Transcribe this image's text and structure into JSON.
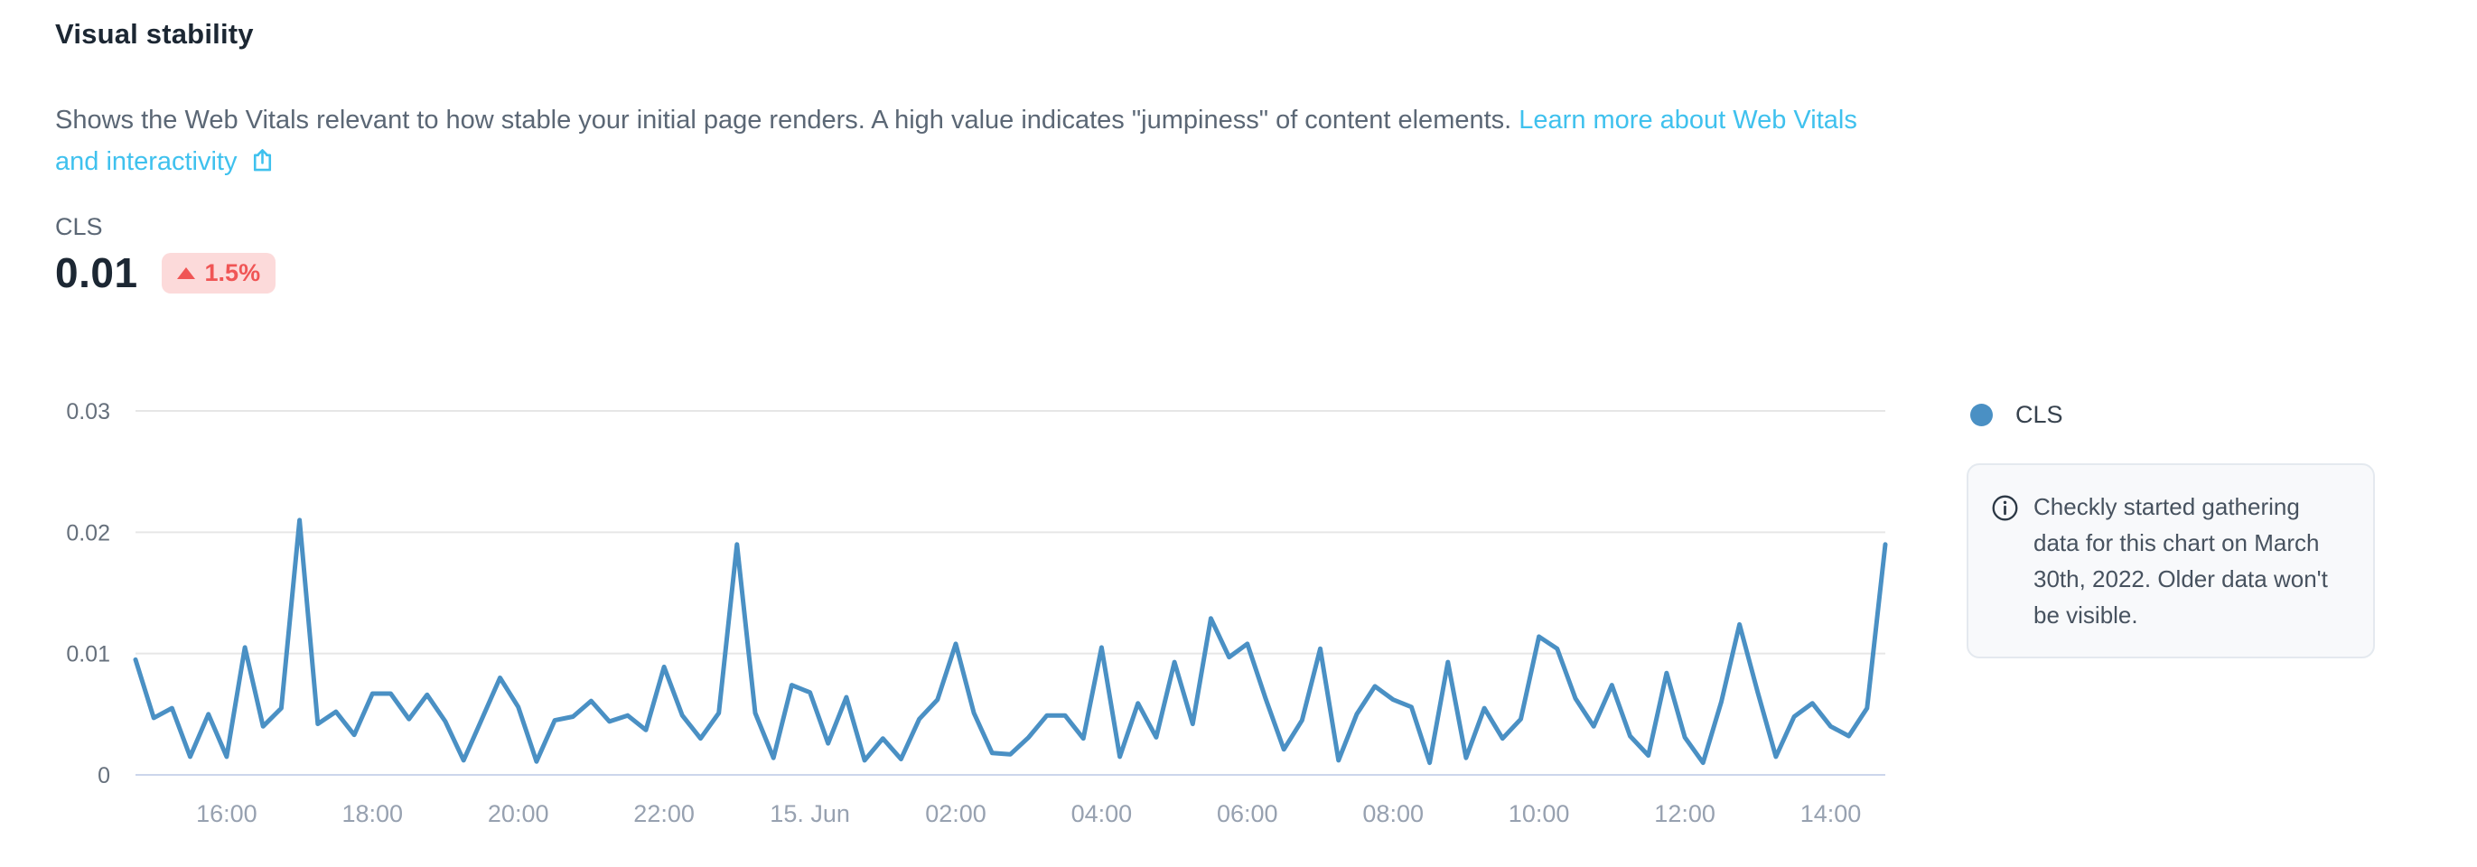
{
  "header": {
    "title": "Visual stability",
    "description": "Shows the Web Vitals relevant to how stable your initial page renders. A high value indicates \"jumpiness\" of content elements.",
    "link_text": "Learn more about Web Vitals and interactivity",
    "link_color": "#3fc1ee"
  },
  "metric": {
    "label": "CLS",
    "value": "0.01",
    "delta": "1.5%",
    "delta_direction": "up",
    "delta_color": "#f05555",
    "delta_bg": "#fcdada"
  },
  "legend": {
    "items": [
      {
        "label": "CLS",
        "color": "#4a90c4"
      }
    ]
  },
  "info_box": {
    "text": "Checkly started gathering data for this chart on March 30th, 2022. Older data won't be visible."
  },
  "chart_data": {
    "type": "line",
    "title": "",
    "xlabel": "",
    "ylabel": "",
    "ylim": [
      0,
      0.03
    ],
    "grid": "horizontal",
    "legend_position": "right",
    "x_start": "Jun 14, 14:45",
    "x_interval_minutes": 15,
    "x_ticks": [
      {
        "label": "16:00",
        "index": 5
      },
      {
        "label": "18:00",
        "index": 13
      },
      {
        "label": "20:00",
        "index": 21
      },
      {
        "label": "22:00",
        "index": 29
      },
      {
        "label": "15. Jun",
        "index": 37
      },
      {
        "label": "02:00",
        "index": 45
      },
      {
        "label": "04:00",
        "index": 53
      },
      {
        "label": "06:00",
        "index": 61
      },
      {
        "label": "08:00",
        "index": 69
      },
      {
        "label": "10:00",
        "index": 77
      },
      {
        "label": "12:00",
        "index": 85
      },
      {
        "label": "14:00",
        "index": 93
      }
    ],
    "y_ticks": [
      {
        "label": "0",
        "value": 0
      },
      {
        "label": "0.01",
        "value": 0.01
      },
      {
        "label": "0.02",
        "value": 0.02
      },
      {
        "label": "0.03",
        "value": 0.03
      }
    ],
    "series": [
      {
        "name": "CLS",
        "color": "#4a90c4",
        "values": [
          0.0095,
          0.0047,
          0.0055,
          0.0015,
          0.005,
          0.0015,
          0.0105,
          0.004,
          0.0055,
          0.021,
          0.0042,
          0.0052,
          0.0033,
          0.0067,
          0.0067,
          0.0046,
          0.0066,
          0.0044,
          0.0012,
          0.0046,
          0.008,
          0.0056,
          0.0011,
          0.0045,
          0.0048,
          0.0061,
          0.0044,
          0.0049,
          0.0037,
          0.0089,
          0.0049,
          0.003,
          0.0051,
          0.019,
          0.0051,
          0.0014,
          0.0074,
          0.0068,
          0.0026,
          0.0064,
          0.0012,
          0.003,
          0.0013,
          0.0046,
          0.0062,
          0.0108,
          0.0051,
          0.0018,
          0.0017,
          0.0031,
          0.0049,
          0.0049,
          0.003,
          0.0105,
          0.0015,
          0.0059,
          0.0031,
          0.0093,
          0.0042,
          0.0129,
          0.0097,
          0.0108,
          0.0063,
          0.0021,
          0.0045,
          0.0104,
          0.0012,
          0.005,
          0.0073,
          0.0062,
          0.0056,
          0.001,
          0.0093,
          0.0014,
          0.0055,
          0.003,
          0.0046,
          0.0114,
          0.0104,
          0.0063,
          0.004,
          0.0074,
          0.0032,
          0.0016,
          0.0084,
          0.0031,
          0.001,
          0.006,
          0.0124,
          0.0068,
          0.0015,
          0.0048,
          0.0059,
          0.004,
          0.0032,
          0.0055,
          0.019
        ]
      }
    ],
    "colors": {
      "gridline": "#e6e6e6",
      "zero_axis_line": "#ccd6eb",
      "y_tick_label": "#66707c",
      "x_tick_label": "#97a1b0"
    }
  }
}
